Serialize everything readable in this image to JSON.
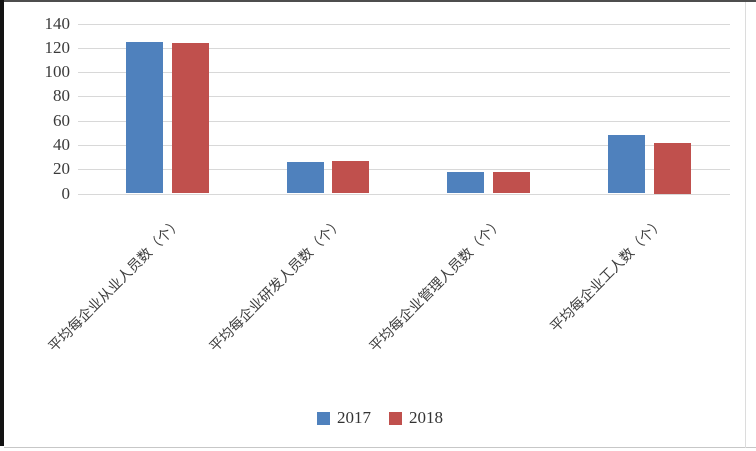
{
  "chart_data": {
    "type": "bar",
    "title": "",
    "xlabel": "",
    "ylabel": "",
    "categories": [
      "平均每企业从业人员数（个）",
      "平均每企业研发人员数（个）",
      "平均每企业管理人员数（个）",
      "平均每企业工人数（个）"
    ],
    "series": [
      {
        "name": "2017",
        "color": "#4F81BD",
        "values": [
          125,
          26,
          18,
          48
        ]
      },
      {
        "name": "2018",
        "color": "#C0504D",
        "values": [
          124,
          27,
          18,
          42
        ]
      }
    ],
    "ylim": [
      0,
      140
    ],
    "yticks": [
      0,
      20,
      40,
      60,
      80,
      100,
      120,
      140
    ],
    "grid": true,
    "legend_position": "bottom",
    "colors": {
      "gridline": "#d8d8d8",
      "tick_text": "#3a3a3a",
      "category_text": "#3d3d3d"
    }
  }
}
